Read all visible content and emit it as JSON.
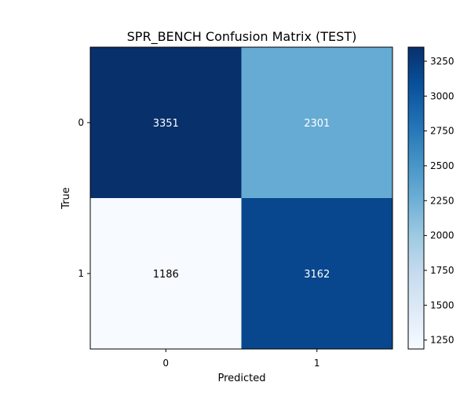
{
  "chart_data": {
    "type": "heatmap",
    "title": "SPR_BENCH Confusion Matrix (TEST)",
    "xlabel": "Predicted",
    "ylabel": "True",
    "x_categories": [
      "0",
      "1"
    ],
    "y_categories": [
      "0",
      "1"
    ],
    "values": [
      [
        3351,
        2301
      ],
      [
        1186,
        3162
      ]
    ],
    "colormap": "Blues",
    "colorbar": {
      "range": [
        1186,
        3351
      ],
      "ticks": [
        1250,
        1500,
        1750,
        2000,
        2250,
        2500,
        2750,
        3000,
        3250
      ]
    },
    "annotation_colors": {
      "dark": "#ffffff",
      "light": "#000000"
    }
  }
}
